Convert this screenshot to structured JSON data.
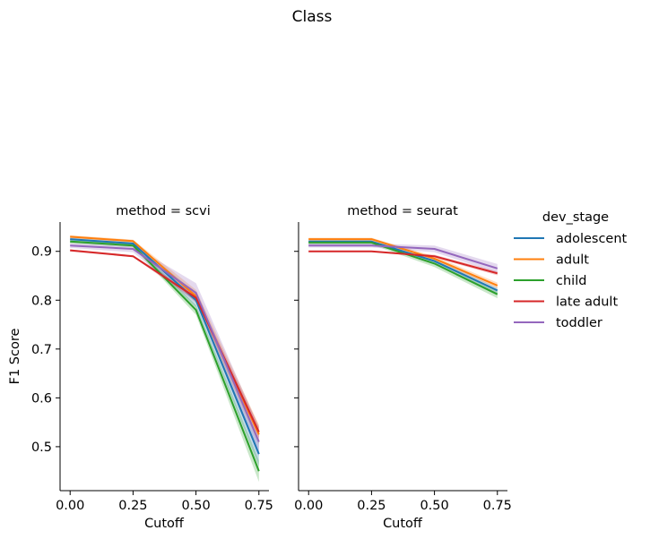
{
  "chart_data": {
    "type": "line",
    "title": "Class",
    "xlabel": "Cutoff",
    "ylabel": "F1 Score",
    "x": [
      0.0,
      0.25,
      0.5,
      0.75
    ],
    "xticks": [
      "0.00",
      "0.25",
      "0.50",
      "0.75"
    ],
    "yticks": [
      "0.5",
      "0.6",
      "0.7",
      "0.8",
      "0.9"
    ],
    "ylim": [
      0.41,
      0.96
    ],
    "xlim": [
      -0.04,
      0.79
    ],
    "legend": {
      "title": "dev_stage",
      "placement": "right"
    },
    "panels": [
      {
        "title": "method = scvi",
        "series": [
          {
            "name": "adolescent",
            "values": [
              0.925,
              0.916,
              0.8,
              0.485
            ],
            "ci_low": [
              0.921,
              0.912,
              0.785,
              0.46
            ],
            "ci_high": [
              0.929,
              0.92,
              0.815,
              0.51
            ]
          },
          {
            "name": "adult",
            "values": [
              0.93,
              0.921,
              0.808,
              0.525
            ],
            "ci_low": [
              0.927,
              0.918,
              0.795,
              0.505
            ],
            "ci_high": [
              0.933,
              0.924,
              0.821,
              0.545
            ]
          },
          {
            "name": "child",
            "values": [
              0.92,
              0.912,
              0.78,
              0.45
            ],
            "ci_low": [
              0.916,
              0.908,
              0.77,
              0.428
            ],
            "ci_high": [
              0.924,
              0.916,
              0.79,
              0.472
            ]
          },
          {
            "name": "late adult",
            "values": [
              0.902,
              0.89,
              0.805,
              0.53
            ],
            "ci_low": [
              0.9,
              0.888,
              0.798,
              0.518
            ],
            "ci_high": [
              0.904,
              0.892,
              0.812,
              0.542
            ]
          },
          {
            "name": "toddler",
            "values": [
              0.912,
              0.905,
              0.815,
              0.51
            ],
            "ci_low": [
              0.907,
              0.898,
              0.795,
              0.48
            ],
            "ci_high": [
              0.917,
              0.912,
              0.835,
              0.54
            ]
          }
        ]
      },
      {
        "title": "method = seurat",
        "series": [
          {
            "name": "adolescent",
            "values": [
              0.92,
              0.92,
              0.88,
              0.82
            ],
            "ci_low": [
              0.917,
              0.917,
              0.874,
              0.814
            ],
            "ci_high": [
              0.923,
              0.923,
              0.886,
              0.826
            ]
          },
          {
            "name": "adult",
            "values": [
              0.925,
              0.925,
              0.885,
              0.83
            ],
            "ci_low": [
              0.922,
              0.922,
              0.88,
              0.824
            ],
            "ci_high": [
              0.928,
              0.928,
              0.89,
              0.836
            ]
          },
          {
            "name": "child",
            "values": [
              0.918,
              0.918,
              0.875,
              0.812
            ],
            "ci_low": [
              0.914,
              0.914,
              0.868,
              0.804
            ],
            "ci_high": [
              0.922,
              0.922,
              0.882,
              0.82
            ]
          },
          {
            "name": "late adult",
            "values": [
              0.9,
              0.9,
              0.89,
              0.855
            ],
            "ci_low": [
              0.899,
              0.899,
              0.887,
              0.851
            ],
            "ci_high": [
              0.901,
              0.901,
              0.893,
              0.859
            ]
          },
          {
            "name": "toddler",
            "values": [
              0.912,
              0.912,
              0.905,
              0.865
            ],
            "ci_low": [
              0.908,
              0.908,
              0.898,
              0.856
            ],
            "ci_high": [
              0.916,
              0.916,
              0.912,
              0.874
            ]
          }
        ]
      }
    ],
    "colors": {
      "adolescent": "#1f77b4",
      "adult": "#ff7f0e",
      "child": "#2ca02c",
      "late adult": "#d62728",
      "toddler": "#9467bd"
    }
  }
}
